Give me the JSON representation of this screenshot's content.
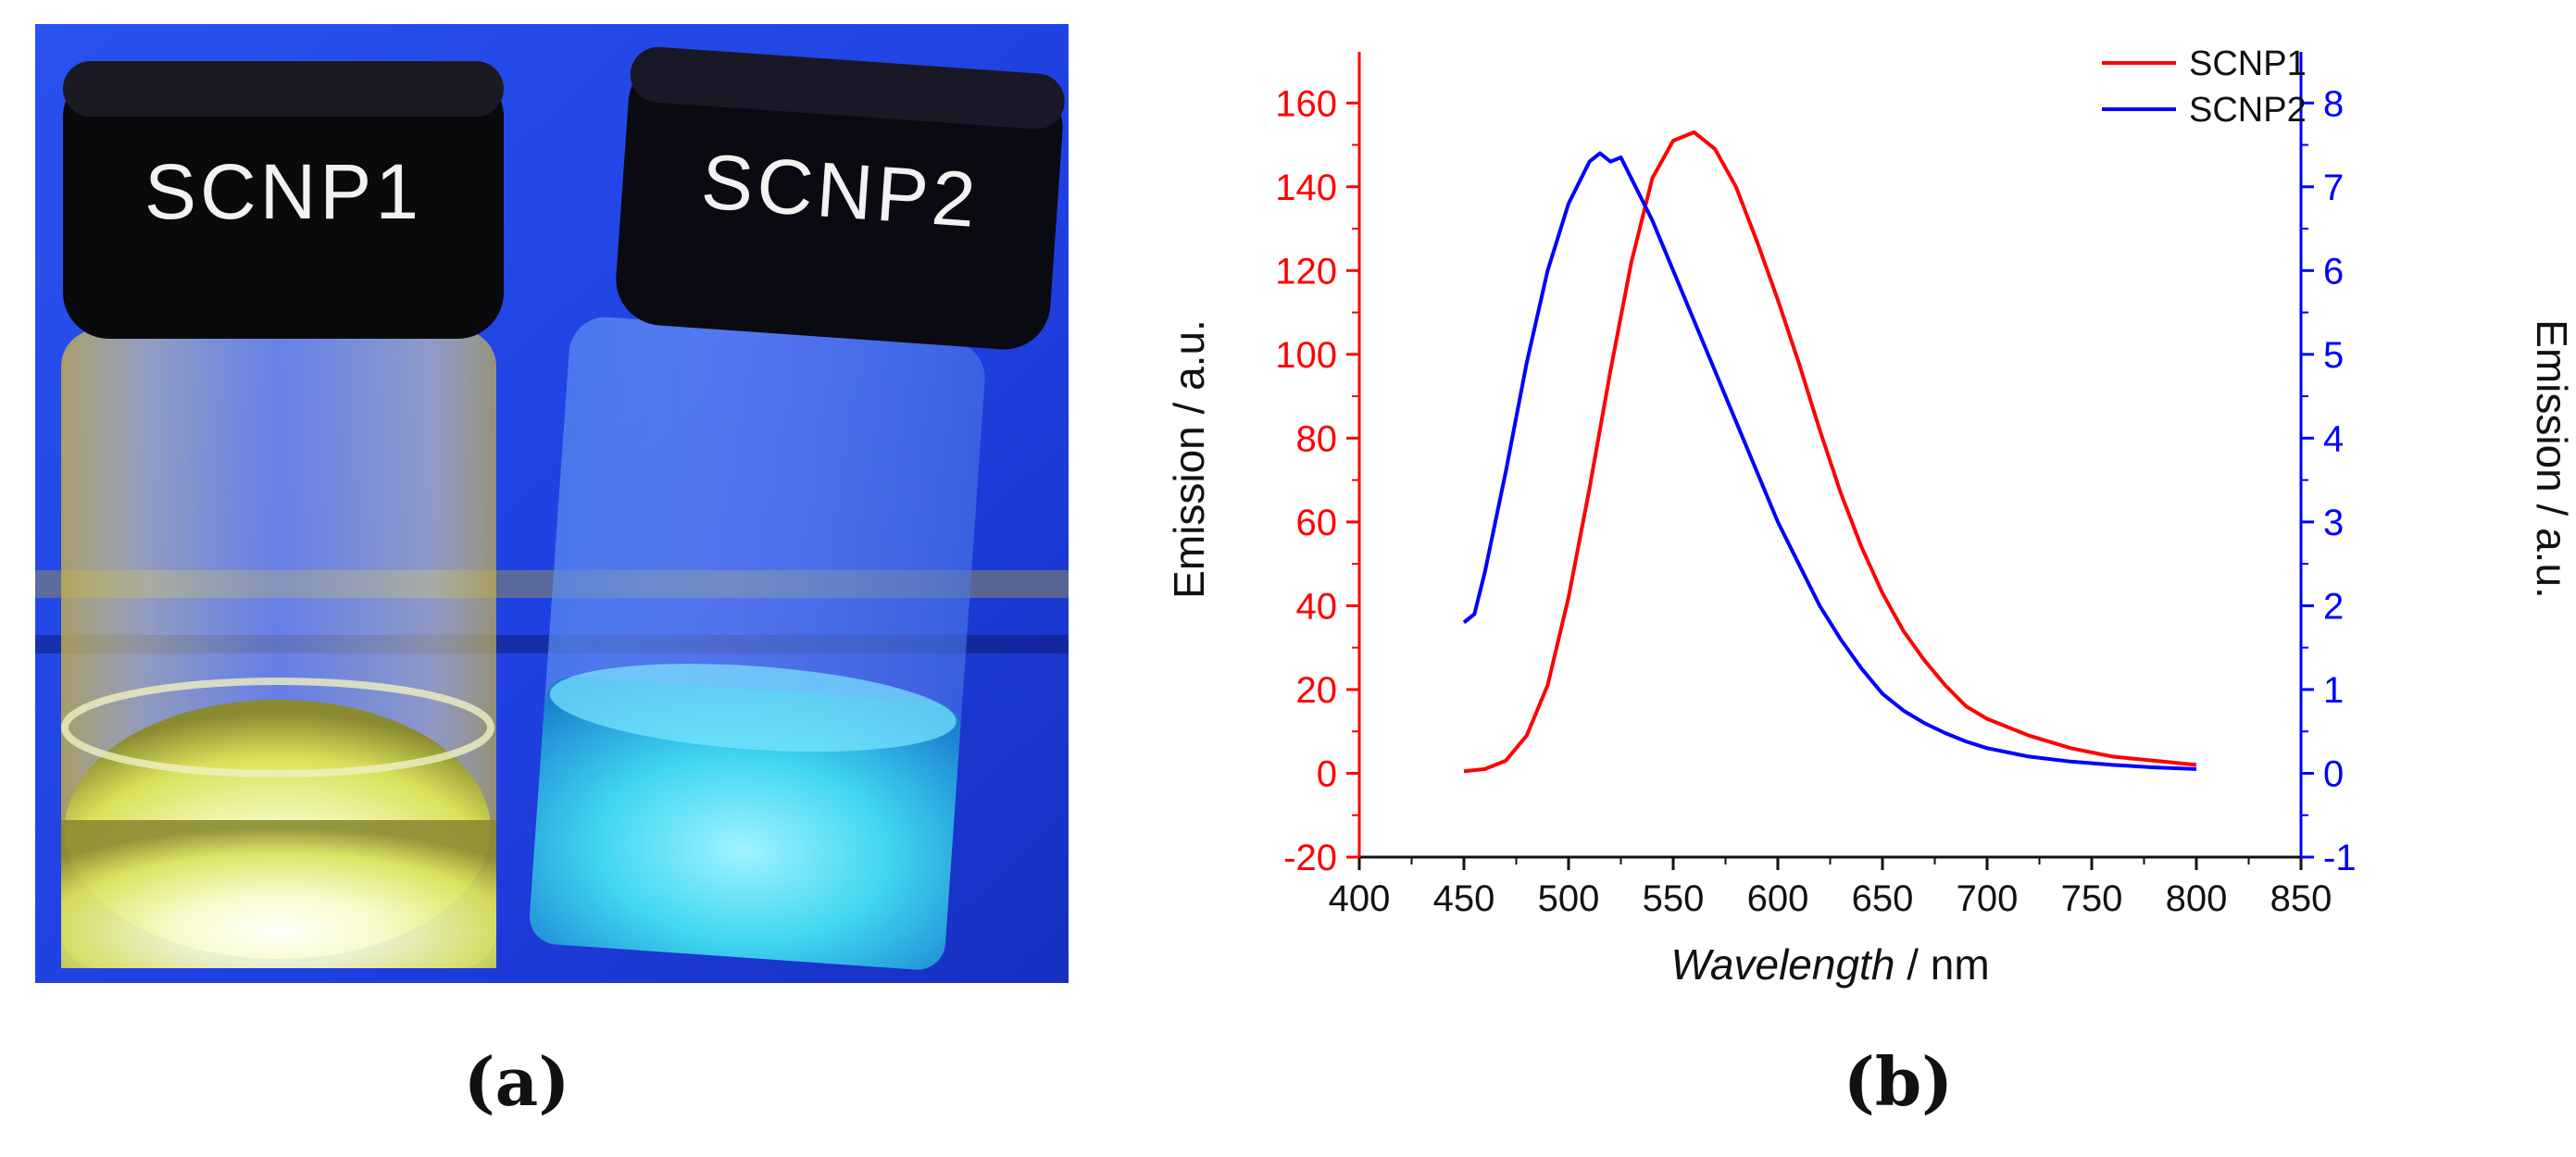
{
  "figure": {
    "label_a": "(a)",
    "label_b": "(b)"
  },
  "photo": {
    "vial_1_label": "SCNP1",
    "vial_2_label": "SCNP2",
    "background_color": "#1f3fe0",
    "vial_1_glow_color": "#f4f8b0",
    "vial_2_glow_color": "#3fd6f0"
  },
  "chart_data": {
    "type": "line",
    "title": "",
    "xlabel_italic": "Wavelength",
    "xlabel_unit": " / nm",
    "ylabel_left": "Emission / a.u.",
    "ylabel_right": "Emission / a.u.",
    "xlim": [
      400,
      850
    ],
    "ylim_left": [
      -20,
      170
    ],
    "ylim_right": [
      -1,
      8.5
    ],
    "x_ticks": [
      400,
      450,
      500,
      550,
      600,
      650,
      700,
      750,
      800,
      850
    ],
    "y_ticks_left": [
      -20,
      0,
      20,
      40,
      60,
      80,
      100,
      120,
      140,
      160
    ],
    "y_ticks_right": [
      -1,
      0,
      1,
      2,
      3,
      4,
      5,
      6,
      7,
      8
    ],
    "left_axis_color": "#ff0000",
    "right_axis_color": "#0000ff",
    "legend_position": "top-right",
    "series": [
      {
        "name": "SCNP1",
        "axis": "left",
        "color": "#ff0000",
        "x": [
          450,
          460,
          470,
          480,
          490,
          500,
          510,
          520,
          530,
          540,
          550,
          560,
          570,
          580,
          590,
          600,
          610,
          620,
          630,
          640,
          650,
          660,
          670,
          680,
          690,
          700,
          720,
          740,
          760,
          780,
          800
        ],
        "y": [
          0.5,
          1,
          3,
          9,
          21,
          42,
          68,
          96,
          122,
          142,
          151,
          153,
          149,
          140,
          127,
          113,
          98,
          82,
          67,
          54,
          43,
          34,
          27,
          21,
          16,
          13,
          9,
          6,
          4,
          3,
          2
        ]
      },
      {
        "name": "SCNP2",
        "axis": "right",
        "color": "#0000ff",
        "x": [
          450,
          455,
          460,
          470,
          480,
          490,
          500,
          510,
          515,
          520,
          525,
          530,
          540,
          550,
          560,
          570,
          580,
          590,
          600,
          610,
          620,
          630,
          640,
          650,
          660,
          670,
          680,
          690,
          700,
          720,
          740,
          760,
          780,
          800
        ],
        "y": [
          1.8,
          1.9,
          2.4,
          3.6,
          4.9,
          6.0,
          6.8,
          7.3,
          7.4,
          7.3,
          7.35,
          7.1,
          6.6,
          6.0,
          5.4,
          4.8,
          4.2,
          3.6,
          3.0,
          2.5,
          2.0,
          1.6,
          1.25,
          0.95,
          0.75,
          0.6,
          0.48,
          0.38,
          0.3,
          0.2,
          0.14,
          0.1,
          0.07,
          0.05
        ]
      }
    ]
  }
}
